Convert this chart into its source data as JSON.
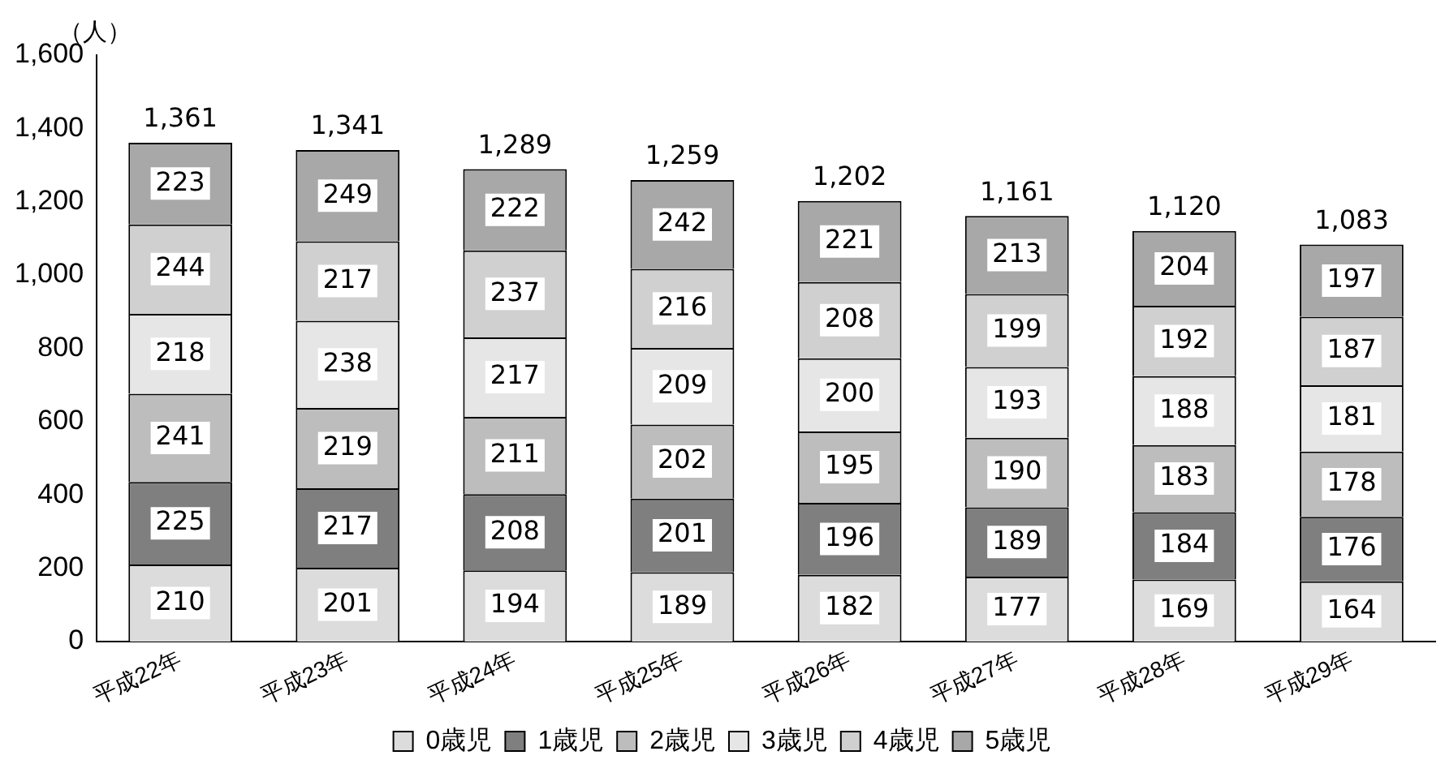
{
  "chart_data": {
    "type": "bar",
    "stacked": true,
    "ylabel": "（人）",
    "categories": [
      "平成22年",
      "平成23年",
      "平成24年",
      "平成25年",
      "平成26年",
      "平成27年",
      "平成28年",
      "平成29年"
    ],
    "series": [
      {
        "name": "0歳児",
        "color": "#dcdcdc",
        "values": [
          210,
          201,
          194,
          189,
          182,
          177,
          169,
          164
        ]
      },
      {
        "name": "1歳児",
        "color": "#7f7f7f",
        "values": [
          225,
          217,
          208,
          201,
          196,
          189,
          184,
          176
        ]
      },
      {
        "name": "2歳児",
        "color": "#bdbdbd",
        "values": [
          241,
          219,
          211,
          202,
          195,
          190,
          183,
          178
        ]
      },
      {
        "name": "3歳児",
        "color": "#e6e6e6",
        "values": [
          218,
          238,
          217,
          209,
          200,
          193,
          188,
          181
        ]
      },
      {
        "name": "4歳児",
        "color": "#d0d0d0",
        "values": [
          244,
          217,
          237,
          216,
          208,
          199,
          192,
          187
        ]
      },
      {
        "name": "5歳児",
        "color": "#a8a8a8",
        "values": [
          223,
          249,
          222,
          242,
          221,
          213,
          204,
          197
        ]
      }
    ],
    "totals": [
      "1,361",
      "1,341",
      "1,289",
      "1,259",
      "1,202",
      "1,161",
      "1,120",
      "1,083"
    ],
    "data_labels": true,
    "ylim": [
      0,
      1600
    ],
    "yticks": [
      0,
      {
        "value": 200,
        "label": "200"
      },
      {
        "value": 400,
        "label": "400"
      },
      {
        "value": 600,
        "label": "600"
      },
      {
        "value": 800,
        "label": "800"
      },
      {
        "value": 1000,
        "label": "1,000"
      },
      {
        "value": 1200,
        "label": "1,200"
      },
      {
        "value": 1400,
        "label": "1,400"
      },
      {
        "value": 1600,
        "label": "1,600"
      }
    ],
    "grid": false,
    "legend": "bottom"
  }
}
